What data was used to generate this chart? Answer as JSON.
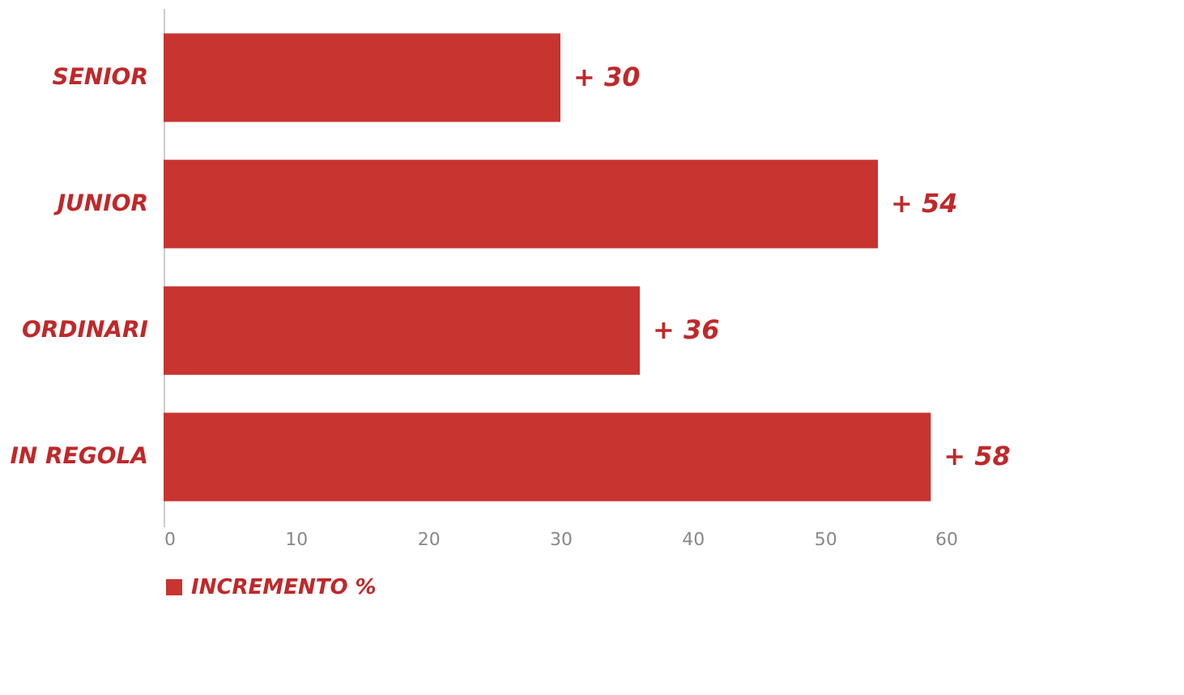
{
  "chart_data": {
    "type": "bar",
    "orientation": "horizontal",
    "categories": [
      "SENIOR",
      "JUNIOR",
      "ORDINARI",
      "IN REGOLA"
    ],
    "series": [
      {
        "name": "INCREMENTO %",
        "color": "#c8342f",
        "values": [
          30,
          54,
          36,
          58
        ]
      }
    ],
    "value_labels": [
      "+ 30",
      "+ 54",
      "+ 36",
      "+ 58"
    ],
    "xlim": [
      0,
      60
    ],
    "xticks": [
      0,
      10,
      20,
      30,
      40,
      50,
      60
    ],
    "grid": false,
    "legend": "bottom"
  }
}
